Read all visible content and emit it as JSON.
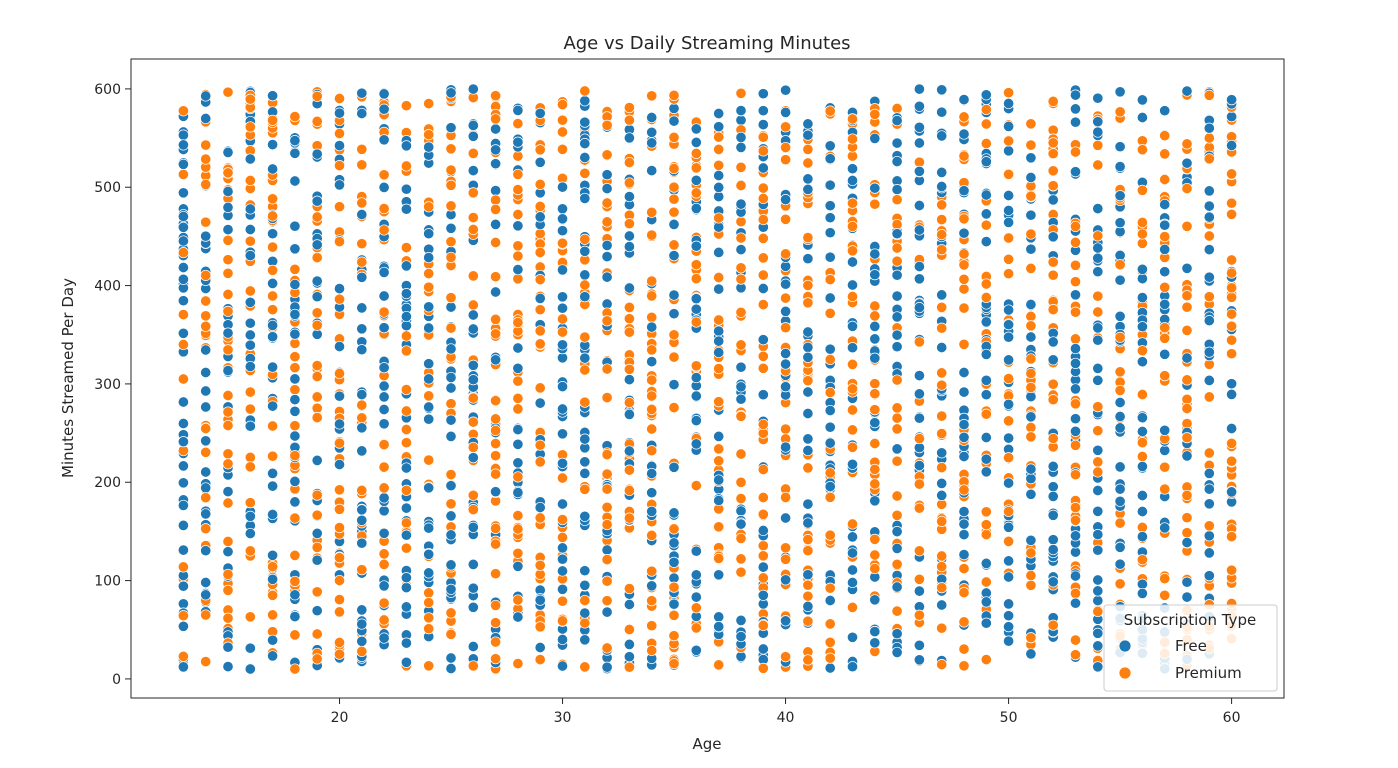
{
  "chart_data": {
    "type": "scatter",
    "title": "Age vs Daily Streaming Minutes",
    "xlabel": "Age",
    "ylabel": "Minutes Streamed Per Day",
    "xlim": [
      10.65,
      62.35
    ],
    "ylim": [
      -19.4,
      630.4
    ],
    "xticks": [
      20,
      30,
      40,
      50,
      60
    ],
    "yticks": [
      0,
      100,
      200,
      300,
      400,
      500,
      600
    ],
    "grid": false,
    "legend": {
      "title": "Subscription Type",
      "placement": "lower-right",
      "entries": [
        "Free",
        "Premium"
      ]
    },
    "colors": {
      "Free": "#1f77b4",
      "Premium": "#ff7f0e"
    },
    "x_range": [
      13,
      60
    ],
    "y_range": [
      10,
      600
    ],
    "points_per_age": 60
  }
}
